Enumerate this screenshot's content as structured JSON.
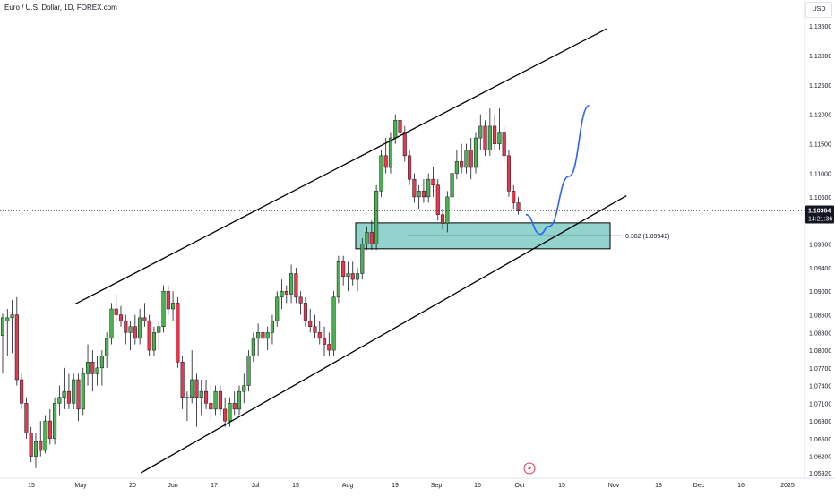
{
  "header": {
    "symbol_title": "Euro / U.S. Dollar, 1D, FOREX.com",
    "currency": "USD"
  },
  "colors": {
    "up": "#4caf50",
    "down": "#e53950",
    "wick": "#131722",
    "zone_fill": "#80cbc4",
    "projection": "#2962ff",
    "channel": "#000000",
    "price_label_bg": "#131722"
  },
  "chart_data": {
    "type": "candlestick",
    "instrument": "Euro / U.S. Dollar",
    "timeframe": "1D",
    "source": "FOREX.com",
    "y_ticks": [
      1.135,
      1.13,
      1.125,
      1.12,
      1.115,
      1.11,
      1.106,
      1.1036,
      1.098,
      1.094,
      1.09,
      1.086,
      1.083,
      1.08,
      1.077,
      1.074,
      1.071,
      1.068,
      1.065,
      1.062,
      1.0592
    ],
    "y_tick_labels": [
      "1.13500",
      "1.13000",
      "1.12500",
      "1.12000",
      "1.11500",
      "1.11000",
      "1.10600",
      "1.10364",
      "1.09800",
      "1.09400",
      "1.09000",
      "1.08600",
      "1.08300",
      "1.08000",
      "1.07700",
      "1.07400",
      "1.07100",
      "1.06800",
      "1.06500",
      "1.06200",
      "1.05920"
    ],
    "x_tick_labels": [
      "15",
      "May",
      "20",
      "Jun",
      "17",
      "Jul",
      "15",
      "Aug",
      "19",
      "Sep",
      "16",
      "Oct",
      "15",
      "Nov",
      "18",
      "Dec",
      "16",
      "2025"
    ],
    "last_price": {
      "value": 1.10364,
      "label": "1.10364",
      "countdown": "14:21:36"
    },
    "fib_level": {
      "label": "0.382 (1.09942)",
      "value": 1.09942
    },
    "support_zone": {
      "from": 1.0972,
      "to": 1.1016
    },
    "channel": {
      "upper": [
        {
          "x": "2024-04-29",
          "y": 1.0878
        },
        {
          "x": "2024-10-31",
          "y": 1.1345
        }
      ],
      "lower": [
        {
          "x": "2024-05-22",
          "y": 1.0592
        },
        {
          "x": "2024-11-07",
          "y": 1.1062
        }
      ]
    },
    "projection": {
      "description_shape": "dip then rally",
      "points": [
        {
          "x": "2024-10-03",
          "y": 1.103
        },
        {
          "x": "2024-10-08",
          "y": 1.0997
        },
        {
          "x": "2024-10-11",
          "y": 1.101
        },
        {
          "x": "2024-10-18",
          "y": 1.1095
        },
        {
          "x": "2024-10-25",
          "y": 1.1215
        }
      ]
    },
    "candles": [
      {
        "o": 1.0825,
        "h": 1.0862,
        "l": 1.076,
        "c": 1.0855
      },
      {
        "o": 1.085,
        "h": 1.087,
        "l": 1.079,
        "c": 1.0855
      },
      {
        "o": 1.0855,
        "h": 1.0885,
        "l": 1.0795,
        "c": 1.086
      },
      {
        "o": 1.086,
        "h": 1.089,
        "l": 1.074,
        "c": 1.075
      },
      {
        "o": 1.075,
        "h": 1.076,
        "l": 1.07,
        "c": 1.071
      },
      {
        "o": 1.071,
        "h": 1.072,
        "l": 1.065,
        "c": 1.066
      },
      {
        "o": 1.066,
        "h": 1.067,
        "l": 1.061,
        "c": 1.062
      },
      {
        "o": 1.062,
        "h": 1.066,
        "l": 1.06,
        "c": 1.0645
      },
      {
        "o": 1.0645,
        "h": 1.068,
        "l": 1.062,
        "c": 1.063
      },
      {
        "o": 1.063,
        "h": 1.069,
        "l": 1.0625,
        "c": 1.068
      },
      {
        "o": 1.068,
        "h": 1.07,
        "l": 1.064,
        "c": 1.065
      },
      {
        "o": 1.065,
        "h": 1.072,
        "l": 1.064,
        "c": 1.071
      },
      {
        "o": 1.071,
        "h": 1.074,
        "l": 1.069,
        "c": 1.072
      },
      {
        "o": 1.072,
        "h": 1.077,
        "l": 1.07,
        "c": 1.073
      },
      {
        "o": 1.073,
        "h": 1.076,
        "l": 1.07,
        "c": 1.071
      },
      {
        "o": 1.071,
        "h": 1.076,
        "l": 1.07,
        "c": 1.075
      },
      {
        "o": 1.075,
        "h": 1.076,
        "l": 1.068,
        "c": 1.07
      },
      {
        "o": 1.07,
        "h": 1.077,
        "l": 1.069,
        "c": 1.076
      },
      {
        "o": 1.076,
        "h": 1.081,
        "l": 1.074,
        "c": 1.078
      },
      {
        "o": 1.078,
        "h": 1.08,
        "l": 1.073,
        "c": 1.076
      },
      {
        "o": 1.076,
        "h": 1.079,
        "l": 1.074,
        "c": 1.077
      },
      {
        "o": 1.077,
        "h": 1.08,
        "l": 1.074,
        "c": 1.079
      },
      {
        "o": 1.079,
        "h": 1.083,
        "l": 1.077,
        "c": 1.082
      },
      {
        "o": 1.082,
        "h": 1.088,
        "l": 1.081,
        "c": 1.087
      },
      {
        "o": 1.087,
        "h": 1.0895,
        "l": 1.085,
        "c": 1.086
      },
      {
        "o": 1.086,
        "h": 1.0875,
        "l": 1.084,
        "c": 1.085
      },
      {
        "o": 1.085,
        "h": 1.086,
        "l": 1.081,
        "c": 1.083
      },
      {
        "o": 1.083,
        "h": 1.085,
        "l": 1.08,
        "c": 1.084
      },
      {
        "o": 1.084,
        "h": 1.086,
        "l": 1.081,
        "c": 1.082
      },
      {
        "o": 1.082,
        "h": 1.087,
        "l": 1.081,
        "c": 1.0855
      },
      {
        "o": 1.0855,
        "h": 1.088,
        "l": 1.084,
        "c": 1.085
      },
      {
        "o": 1.085,
        "h": 1.086,
        "l": 1.079,
        "c": 1.08
      },
      {
        "o": 1.08,
        "h": 1.084,
        "l": 1.079,
        "c": 1.083
      },
      {
        "o": 1.083,
        "h": 1.085,
        "l": 1.08,
        "c": 1.084
      },
      {
        "o": 1.084,
        "h": 1.091,
        "l": 1.083,
        "c": 1.09
      },
      {
        "o": 1.09,
        "h": 1.091,
        "l": 1.086,
        "c": 1.087
      },
      {
        "o": 1.087,
        "h": 1.09,
        "l": 1.085,
        "c": 1.088
      },
      {
        "o": 1.088,
        "h": 1.089,
        "l": 1.077,
        "c": 1.078
      },
      {
        "o": 1.078,
        "h": 1.079,
        "l": 1.07,
        "c": 1.072
      },
      {
        "o": 1.072,
        "h": 1.073,
        "l": 1.068,
        "c": 1.072
      },
      {
        "o": 1.072,
        "h": 1.08,
        "l": 1.071,
        "c": 1.075
      },
      {
        "o": 1.075,
        "h": 1.076,
        "l": 1.067,
        "c": 1.072
      },
      {
        "o": 1.072,
        "h": 1.075,
        "l": 1.069,
        "c": 1.073
      },
      {
        "o": 1.073,
        "h": 1.075,
        "l": 1.07,
        "c": 1.071
      },
      {
        "o": 1.071,
        "h": 1.074,
        "l": 1.068,
        "c": 1.07
      },
      {
        "o": 1.07,
        "h": 1.074,
        "l": 1.069,
        "c": 1.073
      },
      {
        "o": 1.073,
        "h": 1.074,
        "l": 1.069,
        "c": 1.07
      },
      {
        "o": 1.07,
        "h": 1.072,
        "l": 1.067,
        "c": 1.068
      },
      {
        "o": 1.068,
        "h": 1.072,
        "l": 1.067,
        "c": 1.071
      },
      {
        "o": 1.071,
        "h": 1.073,
        "l": 1.069,
        "c": 1.07
      },
      {
        "o": 1.07,
        "h": 1.074,
        "l": 1.069,
        "c": 1.073
      },
      {
        "o": 1.073,
        "h": 1.076,
        "l": 1.071,
        "c": 1.074
      },
      {
        "o": 1.074,
        "h": 1.08,
        "l": 1.073,
        "c": 1.079
      },
      {
        "o": 1.079,
        "h": 1.083,
        "l": 1.078,
        "c": 1.082
      },
      {
        "o": 1.082,
        "h": 1.0845,
        "l": 1.079,
        "c": 1.083
      },
      {
        "o": 1.083,
        "h": 1.085,
        "l": 1.081,
        "c": 1.082
      },
      {
        "o": 1.082,
        "h": 1.084,
        "l": 1.08,
        "c": 1.083
      },
      {
        "o": 1.083,
        "h": 1.086,
        "l": 1.081,
        "c": 1.085
      },
      {
        "o": 1.085,
        "h": 1.09,
        "l": 1.084,
        "c": 1.089
      },
      {
        "o": 1.089,
        "h": 1.092,
        "l": 1.087,
        "c": 1.09
      },
      {
        "o": 1.09,
        "h": 1.091,
        "l": 1.088,
        "c": 1.0895
      },
      {
        "o": 1.0895,
        "h": 1.0945,
        "l": 1.088,
        "c": 1.093
      },
      {
        "o": 1.093,
        "h": 1.094,
        "l": 1.088,
        "c": 1.089
      },
      {
        "o": 1.089,
        "h": 1.09,
        "l": 1.086,
        "c": 1.088
      },
      {
        "o": 1.088,
        "h": 1.089,
        "l": 1.084,
        "c": 1.085
      },
      {
        "o": 1.085,
        "h": 1.087,
        "l": 1.083,
        "c": 1.084
      },
      {
        "o": 1.084,
        "h": 1.086,
        "l": 1.082,
        "c": 1.083
      },
      {
        "o": 1.083,
        "h": 1.085,
        "l": 1.081,
        "c": 1.082
      },
      {
        "o": 1.082,
        "h": 1.084,
        "l": 1.079,
        "c": 1.081
      },
      {
        "o": 1.081,
        "h": 1.083,
        "l": 1.079,
        "c": 1.08
      },
      {
        "o": 1.08,
        "h": 1.09,
        "l": 1.079,
        "c": 1.089
      },
      {
        "o": 1.089,
        "h": 1.096,
        "l": 1.088,
        "c": 1.095
      },
      {
        "o": 1.095,
        "h": 1.096,
        "l": 1.091,
        "c": 1.0925
      },
      {
        "o": 1.0925,
        "h": 1.095,
        "l": 1.09,
        "c": 1.093
      },
      {
        "o": 1.093,
        "h": 1.095,
        "l": 1.091,
        "c": 1.092
      },
      {
        "o": 1.092,
        "h": 1.094,
        "l": 1.09,
        "c": 1.093
      },
      {
        "o": 1.093,
        "h": 1.099,
        "l": 1.092,
        "c": 1.098
      },
      {
        "o": 1.098,
        "h": 1.101,
        "l": 1.097,
        "c": 1.1
      },
      {
        "o": 1.1,
        "h": 1.102,
        "l": 1.097,
        "c": 1.098
      },
      {
        "o": 1.098,
        "h": 1.108,
        "l": 1.097,
        "c": 1.107
      },
      {
        "o": 1.107,
        "h": 1.114,
        "l": 1.106,
        "c": 1.113
      },
      {
        "o": 1.113,
        "h": 1.116,
        "l": 1.11,
        "c": 1.111
      },
      {
        "o": 1.111,
        "h": 1.117,
        "l": 1.11,
        "c": 1.116
      },
      {
        "o": 1.116,
        "h": 1.12,
        "l": 1.115,
        "c": 1.119
      },
      {
        "o": 1.119,
        "h": 1.1205,
        "l": 1.116,
        "c": 1.117
      },
      {
        "o": 1.117,
        "h": 1.118,
        "l": 1.112,
        "c": 1.113
      },
      {
        "o": 1.113,
        "h": 1.114,
        "l": 1.108,
        "c": 1.109
      },
      {
        "o": 1.109,
        "h": 1.11,
        "l": 1.105,
        "c": 1.106
      },
      {
        "o": 1.106,
        "h": 1.108,
        "l": 1.104,
        "c": 1.107
      },
      {
        "o": 1.107,
        "h": 1.109,
        "l": 1.105,
        "c": 1.106
      },
      {
        "o": 1.106,
        "h": 1.11,
        "l": 1.105,
        "c": 1.109
      },
      {
        "o": 1.109,
        "h": 1.111,
        "l": 1.106,
        "c": 1.108
      },
      {
        "o": 1.108,
        "h": 1.109,
        "l": 1.102,
        "c": 1.103
      },
      {
        "o": 1.103,
        "h": 1.104,
        "l": 1.1005,
        "c": 1.1015
      },
      {
        "o": 1.1015,
        "h": 1.107,
        "l": 1.1,
        "c": 1.106
      },
      {
        "o": 1.106,
        "h": 1.111,
        "l": 1.105,
        "c": 1.11
      },
      {
        "o": 1.11,
        "h": 1.114,
        "l": 1.109,
        "c": 1.112
      },
      {
        "o": 1.112,
        "h": 1.115,
        "l": 1.11,
        "c": 1.111
      },
      {
        "o": 1.111,
        "h": 1.115,
        "l": 1.11,
        "c": 1.114
      },
      {
        "o": 1.114,
        "h": 1.116,
        "l": 1.109,
        "c": 1.111
      },
      {
        "o": 1.111,
        "h": 1.117,
        "l": 1.11,
        "c": 1.116
      },
      {
        "o": 1.116,
        "h": 1.12,
        "l": 1.114,
        "c": 1.118
      },
      {
        "o": 1.118,
        "h": 1.119,
        "l": 1.113,
        "c": 1.114
      },
      {
        "o": 1.114,
        "h": 1.121,
        "l": 1.113,
        "c": 1.118
      },
      {
        "o": 1.118,
        "h": 1.12,
        "l": 1.114,
        "c": 1.115
      },
      {
        "o": 1.115,
        "h": 1.121,
        "l": 1.114,
        "c": 1.117
      },
      {
        "o": 1.117,
        "h": 1.118,
        "l": 1.112,
        "c": 1.113
      },
      {
        "o": 1.113,
        "h": 1.114,
        "l": 1.106,
        "c": 1.107
      },
      {
        "o": 1.107,
        "h": 1.108,
        "l": 1.104,
        "c": 1.105
      },
      {
        "o": 1.105,
        "h": 1.106,
        "l": 1.103,
        "c": 1.1036
      }
    ]
  }
}
